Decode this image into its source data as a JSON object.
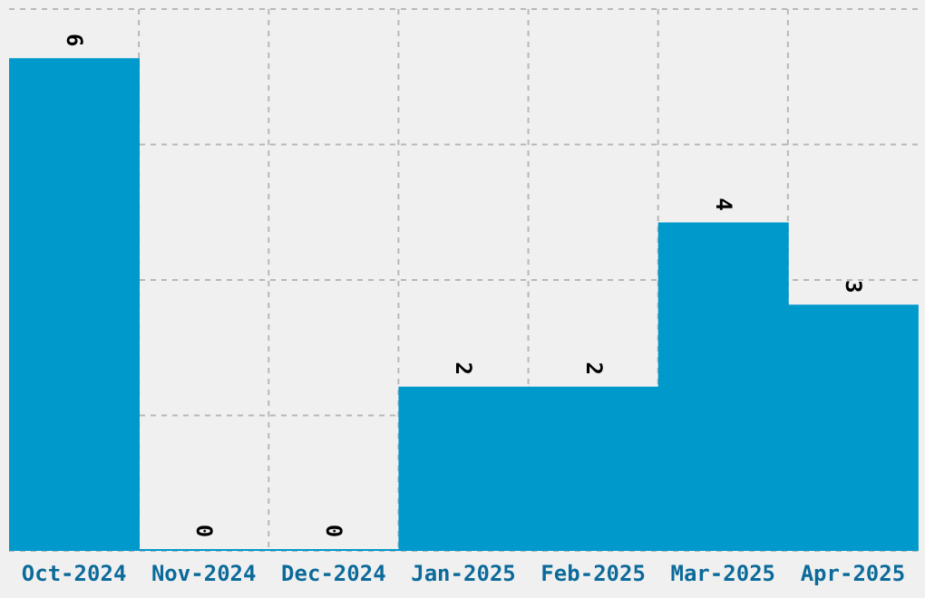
{
  "chart_data": {
    "type": "bar",
    "categories": [
      "Oct-2024",
      "Nov-2024",
      "Dec-2024",
      "Jan-2025",
      "Feb-2025",
      "Mar-2025",
      "Apr-2025"
    ],
    "values": [
      6,
      0,
      0,
      2,
      2,
      4,
      3
    ],
    "color": "#0099cc",
    "ylim": [
      0,
      6.6
    ],
    "yticks": [
      {
        "value": 0,
        "label": null
      },
      {
        "value": 1.65,
        "label": null
      },
      {
        "value": 3.3,
        "label": null
      },
      {
        "value": 4.95,
        "label": null
      },
      {
        "value": 6.6,
        "label": null
      }
    ],
    "grid": true,
    "data_labels": true,
    "tick_labels": "x"
  }
}
